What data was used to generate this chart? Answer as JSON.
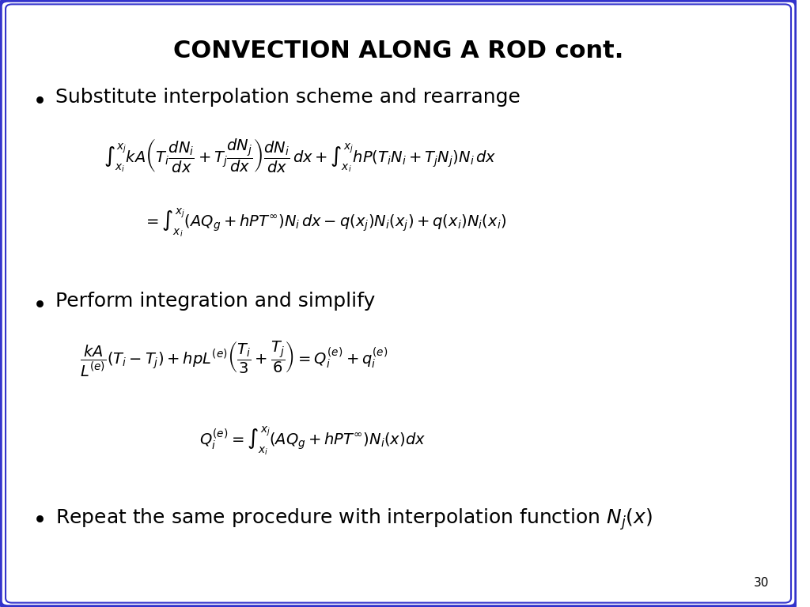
{
  "title": "CONVECTION ALONG A ROD cont.",
  "background_color": "#ffffff",
  "border_color": "#3333cc",
  "page_number": "30",
  "bullet1": "Substitute interpolation scheme and rearrange",
  "eq1a": "\\int_{x_i}^{x_j} kA\\left(T_i \\frac{dN_i}{dx} + T_j \\frac{dN_j}{dx}\\right)\\frac{dN_i}{dx}\\,dx + \\int_{x_i}^{x_j} hP(T_iN_i + T_jN_j)N_i\\,dx",
  "eq1b": "= \\int_{x_i}^{x_j} (AQ_g + hPT^{\\infty})N_i\\,dx - q(x_j)N_i(x_j) + q(x_i)N_i(x_i)",
  "bullet2": "Perform integration and simplify",
  "eq2a": "\\frac{kA}{L^{(e)}}\\left(T_i - T_j\\right) + hpL^{(e)}\\left(\\frac{T_i}{3} + \\frac{T_j}{6}\\right) = Q_i^{(e)} + q_i^{(e)}",
  "eq2b": "Q_i^{(e)} = \\int_{x_i}^{x_j} (AQ_g + hPT^{\\infty})N_i(x)dx",
  "bullet3": "Repeat the same procedure with interpolation function $N_j(x)$"
}
